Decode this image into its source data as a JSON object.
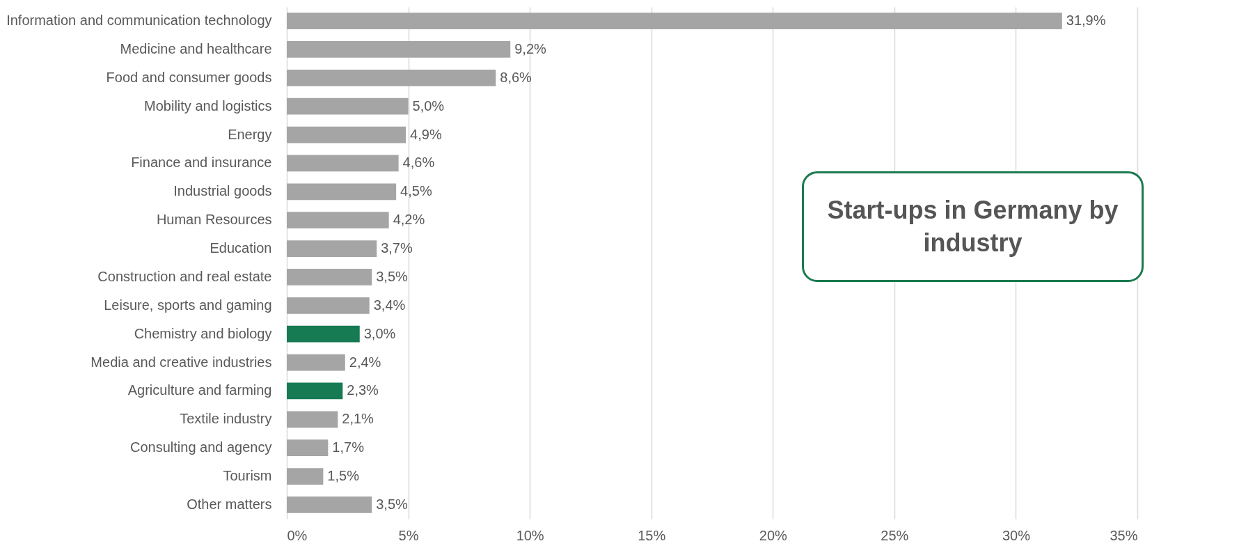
{
  "chart_data": {
    "type": "bar",
    "orientation": "horizontal",
    "title": "Start-ups in Germany by industry",
    "categories": [
      "Information and communication technology",
      "Medicine and healthcare",
      "Food and consumer goods",
      "Mobility and logistics",
      "Energy",
      "Finance and insurance",
      "Industrial goods",
      "Human Resources",
      "Education",
      "Construction and real estate",
      "Leisure, sports and gaming",
      "Chemistry and biology",
      "Media and creative industries",
      "Agriculture and farming",
      "Textile industry",
      "Consulting and agency",
      "Tourism",
      "Other matters"
    ],
    "values": [
      31.9,
      9.2,
      8.6,
      5.0,
      4.9,
      4.6,
      4.5,
      4.2,
      3.7,
      3.5,
      3.4,
      3.0,
      2.4,
      2.3,
      2.1,
      1.7,
      1.5,
      3.5
    ],
    "value_labels": [
      "31,9%",
      "9,2%",
      "8,6%",
      "5,0%",
      "4,9%",
      "4,6%",
      "4,5%",
      "4,2%",
      "3,7%",
      "3,5%",
      "3,4%",
      "3,0%",
      "2,4%",
      "2,3%",
      "2,1%",
      "1,7%",
      "1,5%",
      "3,5%"
    ],
    "colors": [
      "#a5a5a5",
      "#a5a5a5",
      "#a5a5a5",
      "#a5a5a5",
      "#a5a5a5",
      "#a5a5a5",
      "#a5a5a5",
      "#a5a5a5",
      "#a5a5a5",
      "#a5a5a5",
      "#a5a5a5",
      "#167a52",
      "#a5a5a5",
      "#167a52",
      "#a5a5a5",
      "#a5a5a5",
      "#a5a5a5",
      "#a5a5a5"
    ],
    "xlim": [
      0,
      35
    ],
    "xticks": [
      {
        "value": 0,
        "label": "0%"
      },
      {
        "value": 5,
        "label": "5%"
      },
      {
        "value": 10,
        "label": "10%"
      },
      {
        "value": 15,
        "label": "15%"
      },
      {
        "value": 20,
        "label": "20%"
      },
      {
        "value": 25,
        "label": "25%"
      },
      {
        "value": 30,
        "label": "30%"
      },
      {
        "value": 35,
        "label": "35%"
      }
    ],
    "grid": "x"
  }
}
